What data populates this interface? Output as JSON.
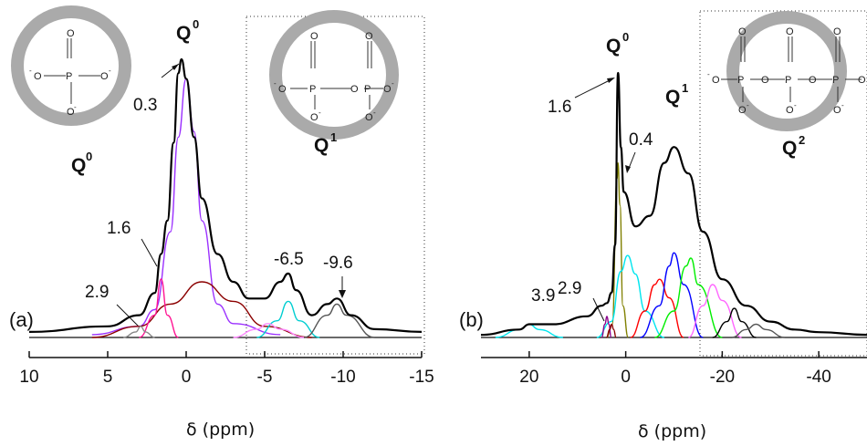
{
  "chart_data": [
    {
      "type": "line",
      "panel_label": "(a)",
      "xlabel": "δ (ppm)",
      "x_axis": "reversed",
      "xlim": [
        10,
        -15
      ],
      "xticks": [
        "10",
        "5",
        "0",
        "-5",
        "-10",
        "-15"
      ],
      "structures": [
        {
          "label": "Q",
          "sup": "0"
        },
        {
          "label": "Q",
          "sup": "1"
        }
      ],
      "peak_label": {
        "label": "Q",
        "sup": "0"
      },
      "annotations": [
        "0.3",
        "1.6",
        "2.9",
        "-6.5",
        "-9.6"
      ],
      "series": [
        {
          "color": "#000000",
          "x": [
            10,
            5,
            3,
            2,
            1.6,
            1.2,
            0.8,
            0.5,
            0.3,
            0,
            -0.5,
            -1,
            -2,
            -3,
            -4,
            -5,
            -6,
            -6.5,
            -7,
            -8,
            -9,
            -9.6,
            -10.5,
            -12,
            -15
          ],
          "y": [
            0.02,
            0.04,
            0.08,
            0.16,
            0.3,
            0.42,
            0.7,
            0.95,
            1.0,
            0.93,
            0.72,
            0.5,
            0.3,
            0.2,
            0.14,
            0.14,
            0.2,
            0.23,
            0.17,
            0.08,
            0.12,
            0.14,
            0.08,
            0.03,
            0.02
          ]
        },
        {
          "color": "#9b30ff",
          "x": [
            6,
            3,
            2,
            1,
            0.5,
            0,
            -0.5,
            -1,
            -2,
            -3,
            -6
          ],
          "y": [
            0.01,
            0.04,
            0.1,
            0.38,
            0.72,
            0.93,
            0.74,
            0.42,
            0.12,
            0.05,
            0.01
          ]
        },
        {
          "color": "#8b0000",
          "x": [
            6,
            3,
            1,
            -1,
            -3,
            -5,
            -8
          ],
          "y": [
            0.0,
            0.04,
            0.12,
            0.2,
            0.13,
            0.04,
            0.0
          ]
        },
        {
          "color": "#ff1493",
          "x": [
            3,
            2,
            1.6,
            1.2,
            0.5
          ],
          "y": [
            0.0,
            0.08,
            0.21,
            0.08,
            0.0
          ]
        },
        {
          "color": "#888888",
          "x": [
            4,
            3.2,
            2.9,
            2.6,
            2
          ],
          "y": [
            0.0,
            0.02,
            0.04,
            0.02,
            0.0
          ]
        },
        {
          "color": "#00ced1",
          "x": [
            -4.5,
            -5.8,
            -6.5,
            -7.2,
            -8.5
          ],
          "y": [
            0.0,
            0.06,
            0.13,
            0.06,
            0.0
          ]
        },
        {
          "color": "#ff88ff",
          "x": [
            -3,
            -4.5,
            -5.2,
            -6,
            -7.5
          ],
          "y": [
            0.0,
            0.03,
            0.05,
            0.03,
            0.0
          ]
        },
        {
          "color": "#555555",
          "x": [
            -7.5,
            -9,
            -9.6,
            -10.2,
            -12
          ],
          "y": [
            0.0,
            0.08,
            0.12,
            0.08,
            0.0
          ]
        }
      ]
    },
    {
      "type": "line",
      "panel_label": "(b)",
      "xlabel": "δ (ppm)",
      "x_axis": "reversed",
      "xlim": [
        30,
        -50
      ],
      "xticks": [
        "20",
        "0",
        "-20",
        "-40"
      ],
      "structures": [
        {
          "label": "Q",
          "sup": "2"
        }
      ],
      "peak_labels": [
        {
          "label": "Q",
          "sup": "0"
        },
        {
          "label": "Q",
          "sup": "1"
        }
      ],
      "annotations": [
        "1.6",
        "0.4",
        "2.9",
        "3.9"
      ],
      "series": [
        {
          "color": "#000000",
          "x": [
            30,
            22,
            20,
            15,
            8,
            5,
            3.9,
            2.9,
            2.2,
            1.6,
            1.0,
            0.4,
            -2,
            -5,
            -8,
            -10,
            -13,
            -16,
            -20,
            -25,
            -30,
            -35,
            -40,
            -50
          ],
          "y": [
            0.01,
            0.03,
            0.05,
            0.05,
            0.08,
            0.12,
            0.13,
            0.17,
            0.35,
            1.0,
            0.72,
            0.55,
            0.42,
            0.46,
            0.66,
            0.72,
            0.62,
            0.4,
            0.22,
            0.12,
            0.06,
            0.03,
            0.02,
            0.01
          ]
        },
        {
          "color": "#808000",
          "x": [
            4,
            2.8,
            1.8,
            1.6,
            1.2,
            0.6,
            -0.5
          ],
          "y": [
            0.0,
            0.05,
            0.6,
            0.66,
            0.5,
            0.12,
            0.0
          ]
        },
        {
          "color": "#00e5ee",
          "x": [
            6,
            3,
            1,
            -0.4,
            -2,
            -4,
            -8
          ],
          "y": [
            0.0,
            0.06,
            0.25,
            0.31,
            0.24,
            0.1,
            0.0
          ]
        },
        {
          "color": "#ff0000",
          "x": [
            -1,
            -4,
            -6,
            -7,
            -9,
            -12
          ],
          "y": [
            0.0,
            0.1,
            0.2,
            0.22,
            0.15,
            0.0
          ]
        },
        {
          "color": "#0000ff",
          "x": [
            -3,
            -7,
            -9,
            -10,
            -12,
            -16
          ],
          "y": [
            0.0,
            0.12,
            0.27,
            0.32,
            0.2,
            0.0
          ]
        },
        {
          "color": "#00ee00",
          "x": [
            -6,
            -10,
            -12.5,
            -13.5,
            -15,
            -20
          ],
          "y": [
            0.0,
            0.1,
            0.27,
            0.3,
            0.2,
            0.0
          ]
        },
        {
          "color": "#ff66ff",
          "x": [
            -13,
            -16,
            -18,
            -20,
            -24
          ],
          "y": [
            0.0,
            0.12,
            0.2,
            0.14,
            0.0
          ]
        },
        {
          "color": "#000000",
          "x": [
            -18,
            -21,
            -22.5,
            -24,
            -27
          ],
          "y": [
            0.0,
            0.06,
            0.11,
            0.06,
            0.0
          ]
        },
        {
          "color": "#555555",
          "x": [
            -22,
            -25,
            -27,
            -29,
            -33
          ],
          "y": [
            0.0,
            0.03,
            0.05,
            0.03,
            0.0
          ]
        },
        {
          "color": "#00e5ee",
          "x": [
            27,
            22,
            20,
            18,
            13
          ],
          "y": [
            0.0,
            0.03,
            0.05,
            0.03,
            0.0
          ]
        },
        {
          "color": "#8b008b",
          "x": [
            5,
            4.3,
            3.9,
            3.5,
            3
          ],
          "y": [
            0.0,
            0.05,
            0.08,
            0.05,
            0.0
          ]
        },
        {
          "color": "#8b0000",
          "x": [
            4,
            3.3,
            2.9,
            2.5,
            2
          ],
          "y": [
            0.0,
            0.03,
            0.05,
            0.03,
            0.0
          ]
        }
      ]
    }
  ]
}
